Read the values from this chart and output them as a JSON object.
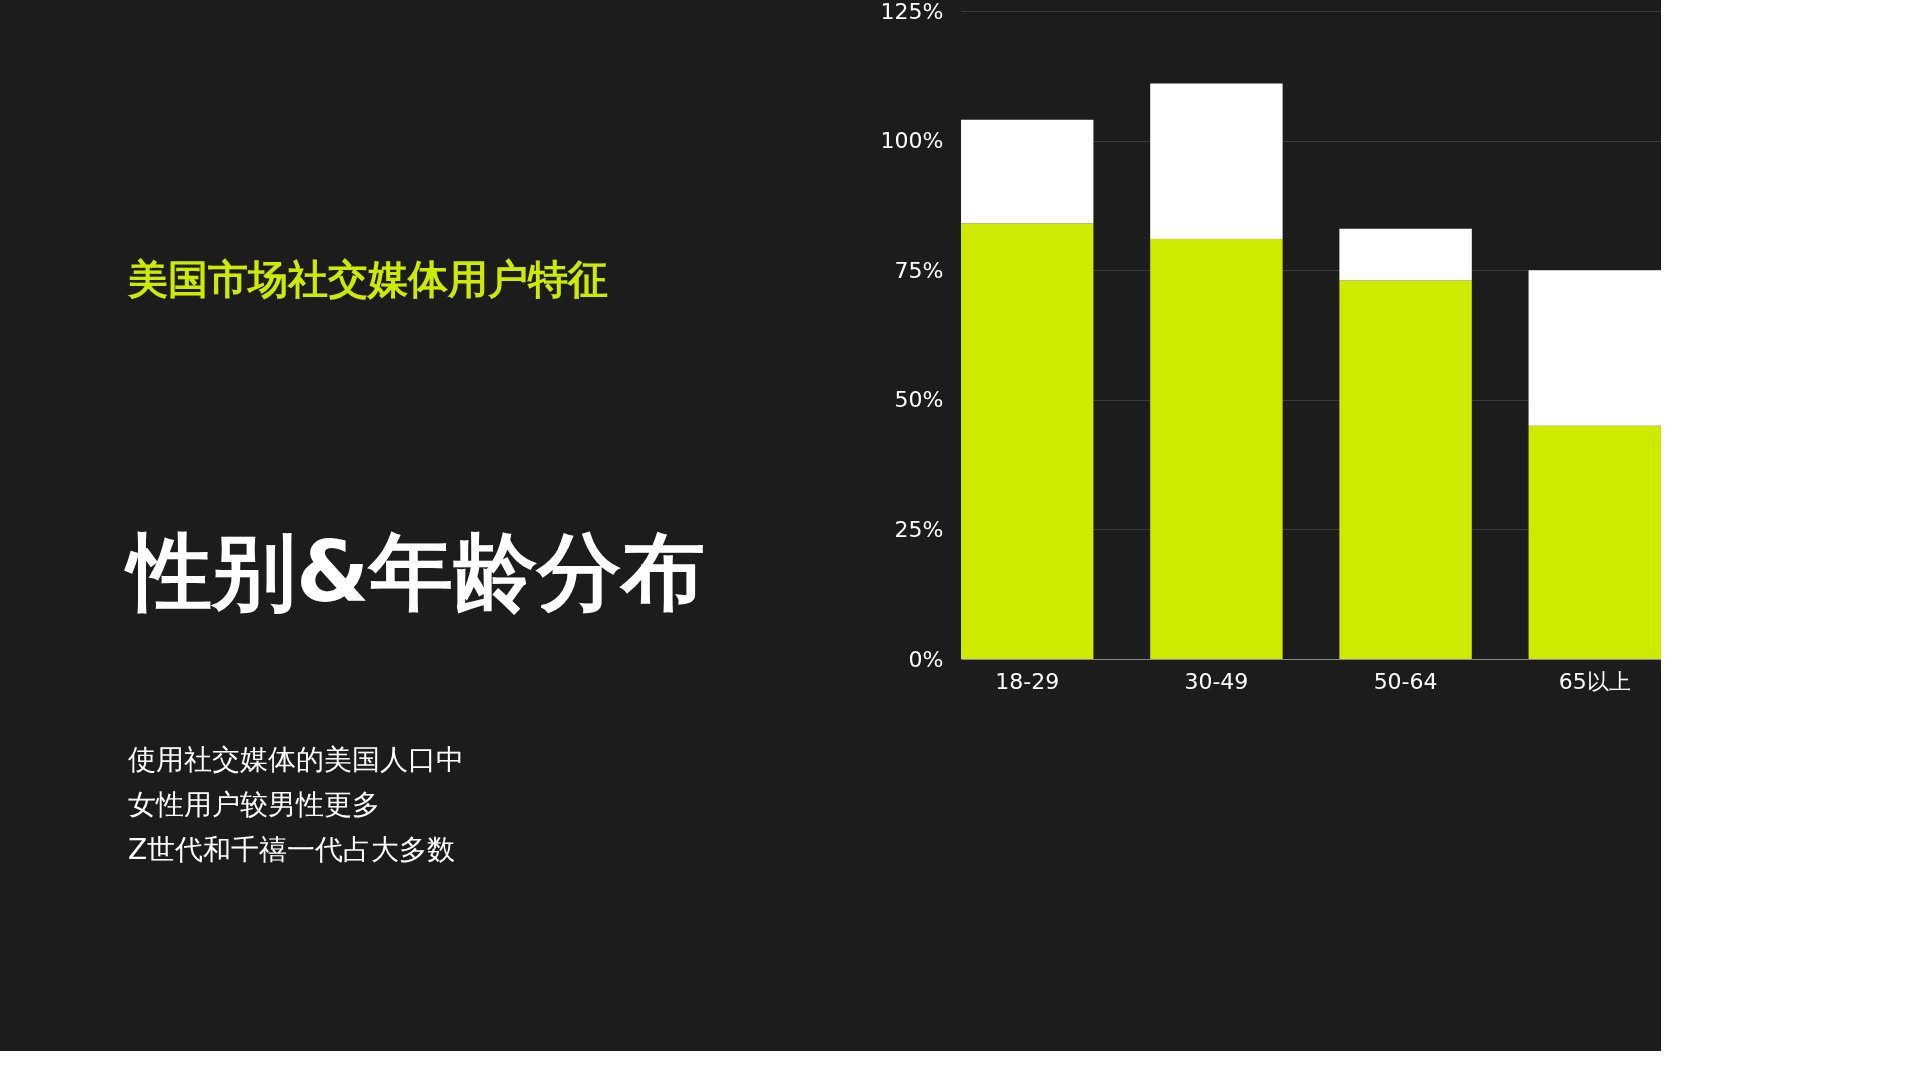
{
  "chart_data": {
    "type": "bar",
    "stacked": true,
    "title": "美国市场社交媒体用户特征",
    "subtitle": "性别&年龄分布",
    "annotations": [
      "使用社交媒体的美国人口中",
      "女性用户较男性更多",
      "Z世代和千禧一代占大多数"
    ],
    "categories": [
      "18-29",
      "30-49",
      "50-64",
      "65以上"
    ],
    "series": [
      {
        "color": "#cdea00",
        "values": [
          84,
          81,
          73,
          45
        ]
      },
      {
        "color": "#ffffff",
        "values": [
          20,
          30,
          10,
          30
        ]
      }
    ],
    "ylim": [
      0,
      125
    ],
    "yticks": [
      {
        "value": 0,
        "label": "0%"
      },
      {
        "value": 25,
        "label": "25%"
      },
      {
        "value": 50,
        "label": "50%"
      },
      {
        "value": 75,
        "label": "75%"
      },
      {
        "value": 100,
        "label": "100%"
      },
      {
        "value": 125,
        "label": "125%"
      }
    ],
    "grid": "y",
    "legend": false
  }
}
